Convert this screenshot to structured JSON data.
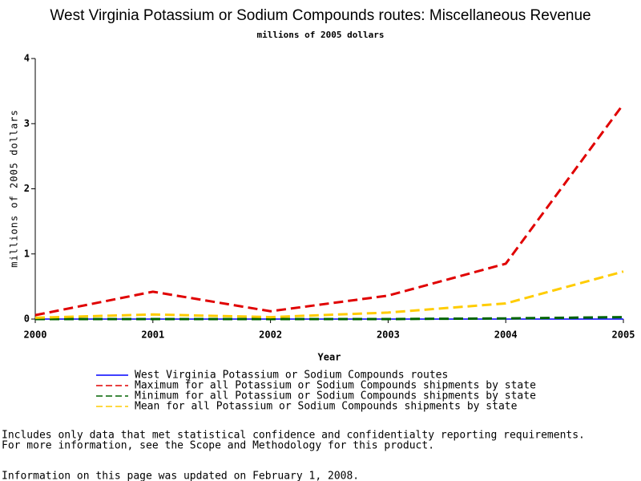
{
  "chart_data": {
    "type": "line",
    "title": "West Virginia Potassium or Sodium Compounds routes: Miscellaneous Revenue",
    "subtitle": "millions of 2005 dollars",
    "x_label": "Year",
    "y_label": "millions of 2005 dollars",
    "x": [
      2000,
      2001,
      2002,
      2003,
      2004,
      2005
    ],
    "xlim": [
      2000,
      2005
    ],
    "xticks": [
      2000,
      2001,
      2002,
      2003,
      2004,
      2005
    ],
    "ylim": [
      0,
      4
    ],
    "yticks": [
      0,
      1,
      2,
      3,
      4
    ],
    "series": [
      {
        "name": "West Virginia Potassium or Sodium Compounds routes",
        "color": "#0000ff",
        "dashed": false,
        "values": [
          0,
          0,
          0,
          0,
          0,
          0
        ]
      },
      {
        "name": "Maximum for all Potassium or Sodium Compounds shipments by state",
        "color": "#e00000",
        "dashed": true,
        "values": [
          0.06,
          0.42,
          0.12,
          0.36,
          0.85,
          3.3
        ]
      },
      {
        "name": "Minimum for all Potassium or Sodium Compounds shipments by state",
        "color": "#006400",
        "dashed": true,
        "values": [
          0,
          0,
          0,
          0,
          0.01,
          0.03
        ]
      },
      {
        "name": "Mean for all Potassium or Sodium Compounds shipments by state",
        "color": "#ffcc00",
        "dashed": true,
        "values": [
          0.02,
          0.07,
          0.03,
          0.1,
          0.24,
          0.73
        ]
      }
    ],
    "notes": [
      "Includes only data that met statistical confidence and confidentialty reporting requirements.",
      "For more information, see the Scope and Methodology for this product."
    ],
    "footer": "Information on this page was updated on February 1, 2008."
  }
}
